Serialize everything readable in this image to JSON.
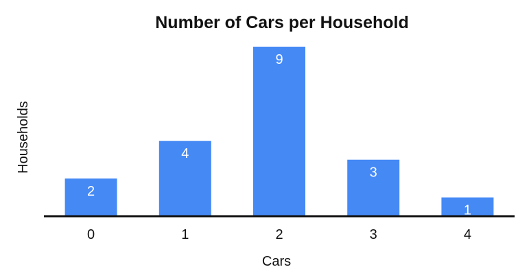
{
  "chart_data": {
    "type": "bar",
    "title": "Number of Cars per Household",
    "xlabel": "Cars",
    "ylabel": "Households",
    "categories": [
      "0",
      "1",
      "2",
      "3",
      "4"
    ],
    "values": [
      2,
      4,
      9,
      3,
      1
    ],
    "ylim": [
      0,
      9
    ],
    "grid": false,
    "legend": "none",
    "data_labels": true,
    "bar_color": "#4589f5",
    "axis_color": "#111111"
  }
}
